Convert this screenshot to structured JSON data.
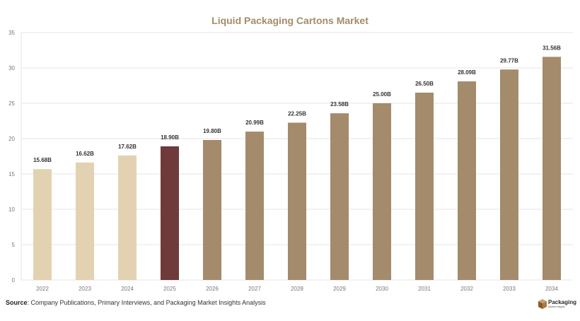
{
  "colors": {
    "title": "#a48c6b",
    "historical_bar": "#e3d2b2",
    "current_bar": "#6e3a3a",
    "forecast_bar": "#a38b6c",
    "grid": "#e6e6e6",
    "axis_text": "#777777",
    "label_text": "#333333"
  },
  "chart_data": {
    "type": "bar",
    "title": "Liquid Packaging Cartons Market",
    "xlabel": "",
    "ylabel": "",
    "categories": [
      "2022",
      "2023",
      "2024",
      "2025",
      "2026",
      "2027",
      "2028",
      "2029",
      "2030",
      "2031",
      "2032",
      "2033",
      "2034"
    ],
    "values": [
      15.68,
      16.62,
      17.62,
      18.9,
      19.8,
      20.99,
      22.25,
      23.58,
      25.0,
      26.5,
      28.09,
      29.77,
      31.56
    ],
    "data_labels": [
      "15.68B",
      "16.62B",
      "17.62B",
      "18.90B",
      "19.80B",
      "20.99B",
      "22.25B",
      "23.58B",
      "25.00B",
      "26.50B",
      "28.09B",
      "29.77B",
      "31.56B"
    ],
    "bar_groups": [
      "historical",
      "historical",
      "historical",
      "current",
      "forecast",
      "forecast",
      "forecast",
      "forecast",
      "forecast",
      "forecast",
      "forecast",
      "forecast",
      "forecast"
    ],
    "ylim": [
      0,
      35
    ],
    "yticks": [
      "0",
      "5",
      "10",
      "15",
      "20",
      "25",
      "30",
      "35"
    ],
    "ytick_values": [
      0,
      5,
      10,
      15,
      20,
      25,
      30,
      35
    ],
    "grid": "horizontal",
    "legend": "none"
  },
  "source": {
    "label": "Source",
    "text": ": Company Publications, Primary Interviews, and Packaging Market Insights Analysis"
  },
  "logo": {
    "title": "Packaging",
    "subtitle": "Market Insights"
  }
}
